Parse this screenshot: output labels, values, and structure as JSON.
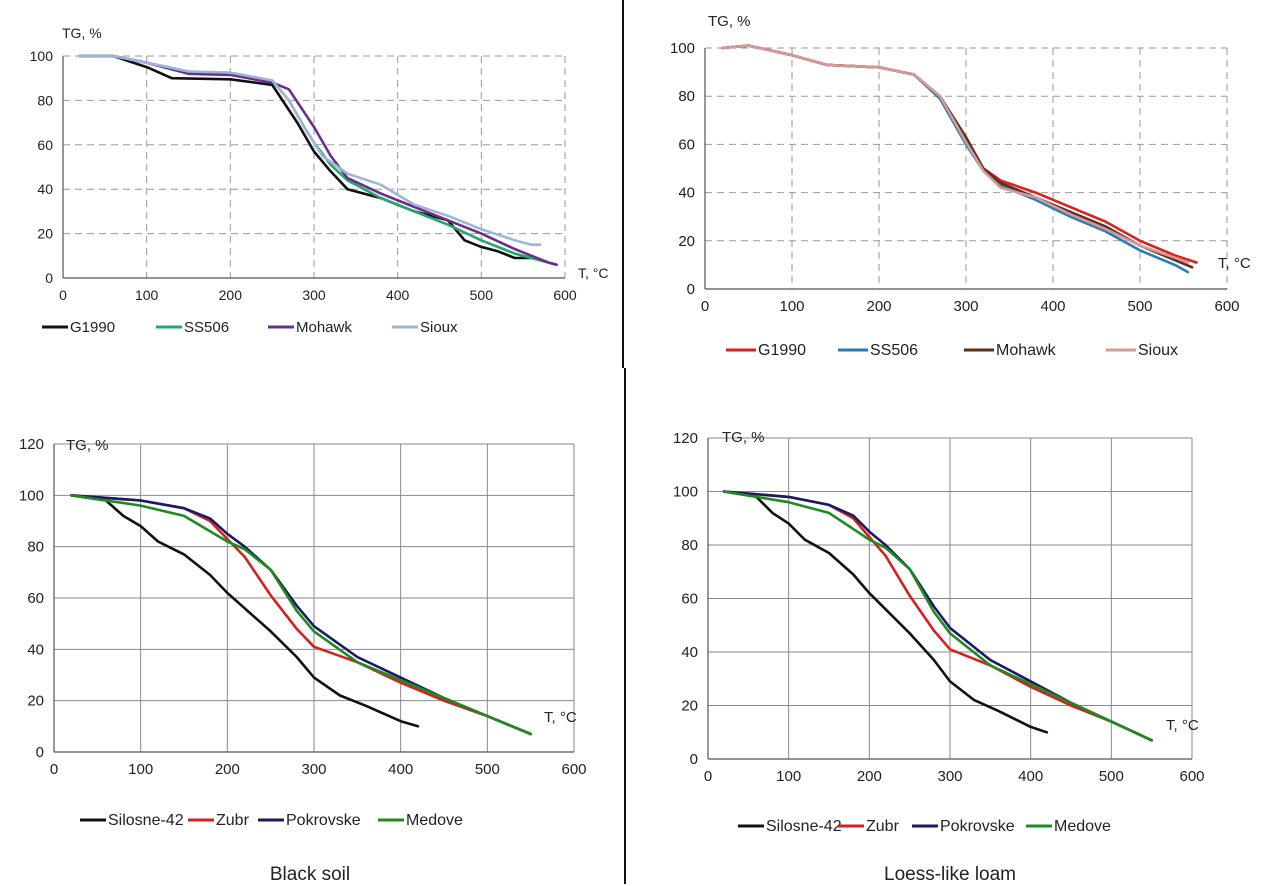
{
  "charts": [
    {
      "type": "line",
      "ylabel": "TG, %",
      "xlabel": "T, °C",
      "xlim": [
        0,
        600
      ],
      "ylim": [
        0,
        100
      ],
      "xticks": [
        0,
        100,
        200,
        300,
        400,
        500,
        600
      ],
      "yticks": [
        0,
        20,
        40,
        60,
        80,
        100
      ],
      "grid": true,
      "legend": "bottom",
      "series": [
        {
          "name": "G1990",
          "color": "#111111",
          "x": [
            20,
            60,
            100,
            130,
            200,
            250,
            280,
            300,
            320,
            340,
            380,
            420,
            460,
            480,
            500,
            520,
            540,
            560
          ],
          "y": [
            100,
            100,
            95,
            90,
            89.5,
            87,
            70,
            57,
            48,
            40,
            36,
            30,
            26,
            17,
            14,
            12,
            9,
            9
          ]
        },
        {
          "name": "SS506",
          "color": "#22a86a",
          "x": [
            20,
            60,
            100,
            150,
            200,
            250,
            270,
            290,
            300,
            320,
            340,
            380,
            420,
            460,
            500,
            540,
            580,
            590
          ],
          "y": [
            100,
            100,
            97,
            93,
            92,
            89,
            80,
            67,
            61,
            51,
            44,
            36,
            30,
            24,
            17,
            11,
            7,
            6
          ]
        },
        {
          "name": "Mohawk",
          "color": "#6a2e91",
          "x": [
            20,
            60,
            100,
            150,
            200,
            250,
            270,
            300,
            320,
            340,
            380,
            420,
            460,
            500,
            540,
            580,
            590
          ],
          "y": [
            100,
            100,
            97,
            92,
            91.5,
            88,
            85,
            68,
            55,
            45,
            38,
            32,
            26,
            20,
            13,
            7,
            6
          ]
        },
        {
          "name": "Sioux",
          "color": "#9fb4d6",
          "x": [
            20,
            60,
            100,
            150,
            200,
            250,
            270,
            290,
            310,
            340,
            380,
            420,
            460,
            500,
            540,
            560,
            570
          ],
          "y": [
            100,
            100,
            97,
            93,
            92.5,
            89,
            80,
            67,
            55,
            47,
            42,
            33,
            28,
            22,
            17,
            15,
            15
          ]
        }
      ]
    },
    {
      "type": "line",
      "ylabel": "TG, %",
      "xlabel": "T, °C",
      "xlim": [
        0,
        600
      ],
      "ylim": [
        0,
        100
      ],
      "xticks": [
        0,
        100,
        200,
        300,
        400,
        500,
        600
      ],
      "yticks": [
        0,
        20,
        40,
        60,
        80,
        100
      ],
      "grid": true,
      "legend": "bottom",
      "series": [
        {
          "name": "G1990",
          "color": "#e02020",
          "x": [
            20,
            50,
            100,
            140,
            200,
            240,
            270,
            300,
            320,
            340,
            380,
            420,
            460,
            500,
            540,
            565
          ],
          "y": [
            100,
            101,
            97,
            93,
            92,
            89,
            80,
            62,
            50,
            45,
            40,
            34,
            28,
            20,
            14,
            11
          ]
        },
        {
          "name": "SS506",
          "color": "#2a7ab8",
          "x": [
            20,
            50,
            100,
            140,
            200,
            240,
            270,
            300,
            320,
            340,
            380,
            420,
            460,
            500,
            540,
            555
          ],
          "y": [
            100,
            101,
            97,
            93,
            92,
            89,
            79,
            60,
            49,
            43,
            37,
            30,
            24,
            16,
            10,
            7
          ]
        },
        {
          "name": "Mohawk",
          "color": "#5a3018",
          "x": [
            20,
            50,
            100,
            140,
            200,
            240,
            270,
            300,
            320,
            340,
            380,
            420,
            460,
            500,
            540,
            560
          ],
          "y": [
            100,
            101,
            97,
            93,
            92,
            89,
            80,
            63,
            50,
            44,
            38,
            32,
            26,
            18,
            12,
            9
          ]
        },
        {
          "name": "Sioux",
          "color": "#d59a98",
          "x": [
            20,
            50,
            100,
            140,
            200,
            240,
            270,
            300,
            320,
            340,
            380,
            420,
            460,
            500,
            540,
            555
          ],
          "y": [
            100,
            101,
            97,
            93,
            92,
            89,
            80,
            61,
            49,
            42,
            38,
            31,
            25,
            18,
            13,
            11
          ]
        }
      ]
    },
    {
      "type": "line",
      "ylabel": "TG, %",
      "xlabel": "T, °C",
      "xlim": [
        0,
        600
      ],
      "ylim": [
        0,
        120
      ],
      "xticks": [
        0,
        100,
        200,
        300,
        400,
        500,
        600
      ],
      "yticks": [
        0,
        20,
        40,
        60,
        80,
        100,
        120
      ],
      "grid": true,
      "legend": "bottom",
      "caption": "Black soil",
      "series": [
        {
          "name": "Silosne-42",
          "color": "#111111",
          "x": [
            20,
            60,
            80,
            100,
            120,
            150,
            180,
            200,
            220,
            250,
            280,
            300,
            330,
            360,
            400,
            420
          ],
          "y": [
            100,
            98,
            92,
            88,
            82,
            77,
            69,
            62,
            56,
            47,
            37,
            29,
            22,
            18,
            12,
            10
          ]
        },
        {
          "name": "Zubr",
          "color": "#d62020",
          "x": [
            20,
            100,
            150,
            180,
            200,
            220,
            250,
            280,
            300,
            350,
            400,
            450,
            500,
            550
          ],
          "y": [
            100,
            98,
            95,
            90,
            83,
            76,
            61,
            48,
            41,
            35,
            27,
            20,
            14,
            7
          ]
        },
        {
          "name": "Pokrovske",
          "color": "#1a1a66",
          "x": [
            20,
            100,
            150,
            180,
            200,
            220,
            250,
            280,
            300,
            350,
            400,
            450,
            500,
            550
          ],
          "y": [
            100,
            98,
            95,
            91,
            85,
            80,
            71,
            57,
            49,
            37,
            29,
            21,
            14,
            7
          ]
        },
        {
          "name": "Medove",
          "color": "#1f8a1f",
          "x": [
            20,
            60,
            100,
            150,
            180,
            200,
            220,
            250,
            280,
            300,
            350,
            400,
            450,
            500,
            550
          ],
          "y": [
            100,
            98,
            96,
            92,
            86,
            82,
            79,
            71,
            55,
            47,
            35,
            28,
            21,
            14,
            7
          ]
        }
      ]
    },
    {
      "type": "line",
      "ylabel": "TG, %",
      "xlabel": "T, °C",
      "xlim": [
        0,
        600
      ],
      "ylim": [
        0,
        120
      ],
      "xticks": [
        0,
        100,
        200,
        300,
        400,
        500,
        600
      ],
      "yticks": [
        0,
        20,
        40,
        60,
        80,
        100,
        120
      ],
      "grid": true,
      "legend": "bottom",
      "caption": "Loess-like loam",
      "series": [
        {
          "name": "Silosne-42",
          "color": "#111111",
          "x": [
            20,
            60,
            80,
            100,
            120,
            150,
            180,
            200,
            220,
            250,
            280,
            300,
            330,
            360,
            400,
            420
          ],
          "y": [
            100,
            98,
            92,
            88,
            82,
            77,
            69,
            62,
            56,
            47,
            37,
            29,
            22,
            18,
            12,
            10
          ]
        },
        {
          "name": "Zubr",
          "color": "#d62020",
          "x": [
            20,
            100,
            150,
            180,
            200,
            220,
            250,
            280,
            300,
            350,
            400,
            450,
            500,
            550
          ],
          "y": [
            100,
            98,
            95,
            90,
            83,
            76,
            61,
            48,
            41,
            35,
            27,
            20,
            14,
            7
          ]
        },
        {
          "name": "Pokrovske",
          "color": "#1a1a66",
          "x": [
            20,
            100,
            150,
            180,
            200,
            220,
            250,
            280,
            300,
            350,
            400,
            450,
            500,
            550
          ],
          "y": [
            100,
            98,
            95,
            91,
            85,
            80,
            71,
            57,
            49,
            37,
            29,
            21,
            14,
            7
          ]
        },
        {
          "name": "Medove",
          "color": "#1f8a1f",
          "x": [
            20,
            60,
            100,
            150,
            180,
            200,
            220,
            250,
            280,
            300,
            350,
            400,
            450,
            500,
            550
          ],
          "y": [
            100,
            98,
            96,
            92,
            86,
            82,
            79,
            71,
            55,
            47,
            35,
            28,
            21,
            14,
            7
          ]
        }
      ]
    }
  ]
}
